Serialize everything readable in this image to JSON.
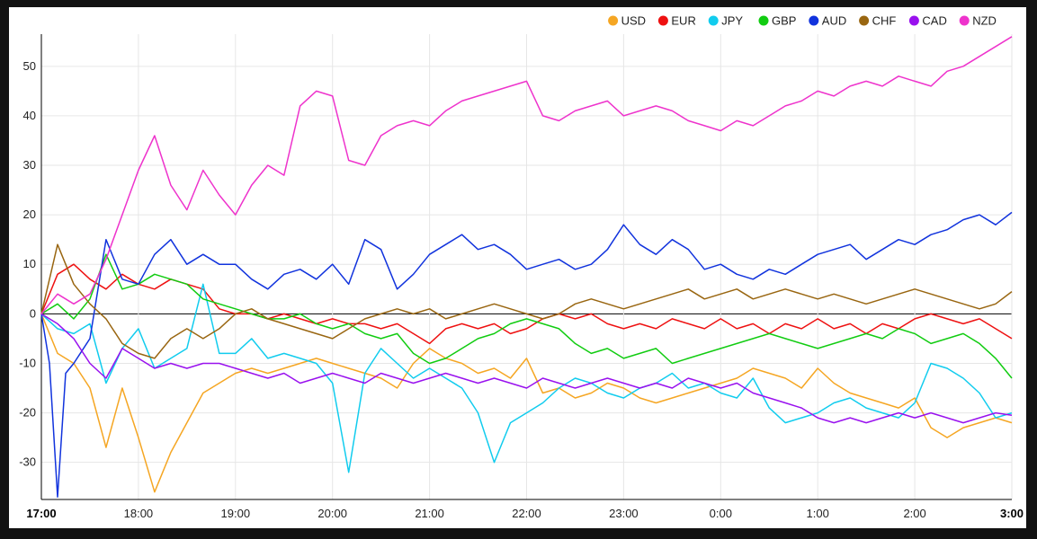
{
  "chart_data": {
    "type": "line",
    "title": "",
    "xlabel": "",
    "ylabel": "",
    "ylim": [
      -37.5,
      56.5
    ],
    "xlim": [
      0,
      600
    ],
    "grid": true,
    "legend_position": "top-right",
    "y_ticks": [
      50,
      40,
      30,
      20,
      10,
      0,
      -10,
      -20,
      -30
    ],
    "x_ticks": [
      {
        "label": "17:00",
        "value": 0,
        "bold": true
      },
      {
        "label": "18:00",
        "value": 60,
        "bold": false
      },
      {
        "label": "19:00",
        "value": 120,
        "bold": false
      },
      {
        "label": "20:00",
        "value": 180,
        "bold": false
      },
      {
        "label": "21:00",
        "value": 240,
        "bold": false
      },
      {
        "label": "22:00",
        "value": 300,
        "bold": false
      },
      {
        "label": "23:00",
        "value": 360,
        "bold": false
      },
      {
        "label": "0:00",
        "value": 420,
        "bold": false
      },
      {
        "label": "1:00",
        "value": 480,
        "bold": false
      },
      {
        "label": "2:00",
        "value": 540,
        "bold": false
      },
      {
        "label": "3:00",
        "value": 600,
        "bold": true
      }
    ],
    "series": [
      {
        "name": "USD",
        "color": "#f5a623",
        "x": [
          0,
          10,
          20,
          30,
          40,
          50,
          60,
          70,
          80,
          90,
          100,
          110,
          120,
          130,
          140,
          150,
          160,
          170,
          180,
          190,
          200,
          210,
          220,
          230,
          240,
          250,
          260,
          270,
          280,
          290,
          300,
          310,
          320,
          330,
          340,
          350,
          360,
          370,
          380,
          390,
          400,
          410,
          420,
          430,
          440,
          450,
          460,
          470,
          480,
          490,
          500,
          510,
          520,
          530,
          540,
          550,
          560,
          570,
          580,
          590,
          600
        ],
        "y": [
          0,
          -8,
          -10,
          -15,
          -27,
          -15,
          -25,
          -36,
          -28,
          -22,
          -16,
          -14,
          -12,
          -11,
          -12,
          -11,
          -10,
          -9,
          -10,
          -11,
          -12,
          -13,
          -15,
          -10,
          -7,
          -9,
          -10,
          -12,
          -11,
          -13,
          -9,
          -16,
          -15,
          -17,
          -16,
          -14,
          -15,
          -17,
          -18,
          -17,
          -16,
          -15,
          -14,
          -13,
          -11,
          -12,
          -13,
          -15,
          -11,
          -14,
          -16,
          -17,
          -18,
          -19,
          -17,
          -23,
          -25,
          -23,
          -22,
          -21,
          -22
        ]
      },
      {
        "name": "EUR",
        "color": "#ee1111",
        "x": [
          0,
          10,
          20,
          30,
          40,
          50,
          60,
          70,
          80,
          90,
          100,
          110,
          120,
          130,
          140,
          150,
          160,
          170,
          180,
          190,
          200,
          210,
          220,
          230,
          240,
          250,
          260,
          270,
          280,
          290,
          300,
          310,
          320,
          330,
          340,
          350,
          360,
          370,
          380,
          390,
          400,
          410,
          420,
          430,
          440,
          450,
          460,
          470,
          480,
          490,
          500,
          510,
          520,
          530,
          540,
          550,
          560,
          570,
          580,
          590,
          600
        ],
        "y": [
          0,
          8,
          10,
          7,
          5,
          8,
          6,
          5,
          7,
          6,
          5,
          1,
          0,
          0,
          -1,
          0,
          -1,
          -2,
          -1,
          -2,
          -2,
          -3,
          -2,
          -4,
          -6,
          -3,
          -2,
          -3,
          -2,
          -4,
          -3,
          -1,
          0,
          -1,
          0,
          -2,
          -3,
          -2,
          -3,
          -1,
          -2,
          -3,
          -1,
          -3,
          -2,
          -4,
          -2,
          -3,
          -1,
          -3,
          -2,
          -4,
          -2,
          -3,
          -1,
          0,
          -1,
          -2,
          -1,
          -3,
          -5
        ]
      },
      {
        "name": "JPY",
        "color": "#11ccee",
        "x": [
          0,
          10,
          20,
          30,
          40,
          50,
          60,
          70,
          80,
          90,
          100,
          110,
          120,
          130,
          140,
          150,
          160,
          170,
          180,
          190,
          200,
          210,
          220,
          230,
          240,
          250,
          260,
          270,
          280,
          290,
          300,
          310,
          320,
          330,
          340,
          350,
          360,
          370,
          380,
          390,
          400,
          410,
          420,
          430,
          440,
          450,
          460,
          470,
          480,
          490,
          500,
          510,
          520,
          530,
          540,
          550,
          560,
          570,
          580,
          590,
          600
        ],
        "y": [
          0,
          -3,
          -4,
          -2,
          -14,
          -7,
          -3,
          -11,
          -9,
          -7,
          6,
          -8,
          -8,
          -5,
          -9,
          -8,
          -9,
          -10,
          -14,
          -32,
          -12,
          -7,
          -10,
          -13,
          -11,
          -13,
          -15,
          -20,
          -30,
          -22,
          -20,
          -18,
          -15,
          -13,
          -14,
          -16,
          -17,
          -15,
          -14,
          -12,
          -15,
          -14,
          -16,
          -17,
          -13,
          -19,
          -22,
          -21,
          -20,
          -18,
          -17,
          -19,
          -20,
          -21,
          -18,
          -10,
          -11,
          -13,
          -16,
          -21,
          -20
        ]
      },
      {
        "name": "GBP",
        "color": "#11cc11",
        "x": [
          0,
          10,
          20,
          30,
          40,
          50,
          60,
          70,
          80,
          90,
          100,
          110,
          120,
          130,
          140,
          150,
          160,
          170,
          180,
          190,
          200,
          210,
          220,
          230,
          240,
          250,
          260,
          270,
          280,
          290,
          300,
          310,
          320,
          330,
          340,
          350,
          360,
          370,
          380,
          390,
          400,
          410,
          420,
          430,
          440,
          450,
          460,
          470,
          480,
          490,
          500,
          510,
          520,
          530,
          540,
          550,
          560,
          570,
          580,
          590,
          600
        ],
        "y": [
          0,
          2,
          -1,
          3,
          12,
          5,
          6,
          8,
          7,
          6,
          3,
          2,
          1,
          0,
          -1,
          -1,
          0,
          -2,
          -3,
          -2,
          -4,
          -5,
          -4,
          -8,
          -10,
          -9,
          -7,
          -5,
          -4,
          -2,
          -1,
          -2,
          -3,
          -6,
          -8,
          -7,
          -9,
          -8,
          -7,
          -10,
          -9,
          -8,
          -7,
          -6,
          -5,
          -4,
          -5,
          -6,
          -7,
          -6,
          -5,
          -4,
          -5,
          -3,
          -4,
          -6,
          -5,
          -4,
          -6,
          -9,
          -13
        ]
      },
      {
        "name": "AUD",
        "color": "#1133dd",
        "x": [
          0,
          5,
          10,
          15,
          20,
          30,
          40,
          50,
          60,
          70,
          80,
          90,
          100,
          110,
          120,
          130,
          140,
          150,
          160,
          170,
          180,
          190,
          200,
          210,
          220,
          230,
          240,
          250,
          260,
          270,
          280,
          290,
          300,
          310,
          320,
          330,
          340,
          350,
          360,
          370,
          380,
          390,
          400,
          410,
          420,
          430,
          440,
          450,
          460,
          470,
          480,
          490,
          500,
          510,
          520,
          530,
          540,
          550,
          560,
          570,
          580,
          590,
          600
        ],
        "y": [
          0,
          -10,
          -37,
          -12,
          -10,
          -5,
          15,
          7,
          6,
          12,
          15,
          10,
          12,
          10,
          10,
          7,
          5,
          8,
          9,
          7,
          10,
          6,
          15,
          13,
          5,
          8,
          12,
          14,
          16,
          13,
          14,
          12,
          9,
          10,
          11,
          9,
          10,
          13,
          18,
          14,
          12,
          15,
          13,
          9,
          10,
          8,
          7,
          9,
          8,
          10,
          12,
          13,
          14,
          11,
          13,
          15,
          14,
          16,
          17,
          19,
          20,
          18,
          20.5
        ]
      },
      {
        "name": "CHF",
        "color": "#996611",
        "x": [
          0,
          10,
          20,
          30,
          40,
          50,
          60,
          70,
          80,
          90,
          100,
          110,
          120,
          130,
          140,
          150,
          160,
          170,
          180,
          190,
          200,
          210,
          220,
          230,
          240,
          250,
          260,
          270,
          280,
          290,
          300,
          310,
          320,
          330,
          340,
          350,
          360,
          370,
          380,
          390,
          400,
          410,
          420,
          430,
          440,
          450,
          460,
          470,
          480,
          490,
          500,
          510,
          520,
          530,
          540,
          550,
          560,
          570,
          580,
          590,
          600
        ],
        "y": [
          0,
          14,
          6,
          2,
          -1,
          -6,
          -8,
          -9,
          -5,
          -3,
          -5,
          -3,
          0,
          1,
          -1,
          -2,
          -3,
          -4,
          -5,
          -3,
          -1,
          0,
          1,
          0,
          1,
          -1,
          0,
          1,
          2,
          1,
          0,
          -1,
          0,
          2,
          3,
          2,
          1,
          2,
          3,
          4,
          5,
          3,
          4,
          5,
          3,
          4,
          5,
          4,
          3,
          4,
          3,
          2,
          3,
          4,
          5,
          4,
          3,
          2,
          1,
          2,
          4.5
        ]
      },
      {
        "name": "CAD",
        "color": "#9911ee",
        "x": [
          0,
          10,
          20,
          30,
          40,
          50,
          60,
          70,
          80,
          90,
          100,
          110,
          120,
          130,
          140,
          150,
          160,
          170,
          180,
          190,
          200,
          210,
          220,
          230,
          240,
          250,
          260,
          270,
          280,
          290,
          300,
          310,
          320,
          330,
          340,
          350,
          360,
          370,
          380,
          390,
          400,
          410,
          420,
          430,
          440,
          450,
          460,
          470,
          480,
          490,
          500,
          510,
          520,
          530,
          540,
          550,
          560,
          570,
          580,
          590,
          600
        ],
        "y": [
          0,
          -2,
          -5,
          -10,
          -13,
          -7,
          -9,
          -11,
          -10,
          -11,
          -10,
          -10,
          -11,
          -12,
          -13,
          -12,
          -14,
          -13,
          -12,
          -13,
          -14,
          -12,
          -13,
          -14,
          -13,
          -12,
          -13,
          -14,
          -13,
          -14,
          -15,
          -13,
          -14,
          -15,
          -14,
          -13,
          -14,
          -15,
          -14,
          -15,
          -13,
          -14,
          -15,
          -14,
          -16,
          -17,
          -18,
          -19,
          -21,
          -22,
          -21,
          -22,
          -21,
          -20,
          -21,
          -20,
          -21,
          -22,
          -21,
          -20,
          -20.5
        ]
      },
      {
        "name": "NZD",
        "color": "#ee33cc",
        "x": [
          0,
          10,
          20,
          30,
          40,
          50,
          60,
          70,
          80,
          90,
          100,
          110,
          120,
          130,
          140,
          150,
          160,
          170,
          180,
          190,
          200,
          210,
          220,
          230,
          240,
          250,
          260,
          270,
          280,
          290,
          300,
          310,
          320,
          330,
          340,
          350,
          360,
          370,
          380,
          390,
          400,
          410,
          420,
          430,
          440,
          450,
          460,
          470,
          480,
          490,
          500,
          510,
          520,
          530,
          540,
          550,
          560,
          570,
          580,
          590,
          600
        ],
        "y": [
          0,
          4,
          2,
          4,
          11,
          20,
          29,
          36,
          26,
          21,
          29,
          24,
          20,
          26,
          30,
          28,
          42,
          45,
          44,
          31,
          30,
          36,
          38,
          39,
          38,
          41,
          43,
          44,
          45,
          46,
          47,
          40,
          39,
          41,
          42,
          43,
          40,
          41,
          42,
          41,
          39,
          38,
          37,
          39,
          38,
          40,
          42,
          43,
          45,
          44,
          46,
          47,
          46,
          48,
          47,
          46,
          49,
          50,
          52,
          54,
          56
        ]
      }
    ]
  }
}
